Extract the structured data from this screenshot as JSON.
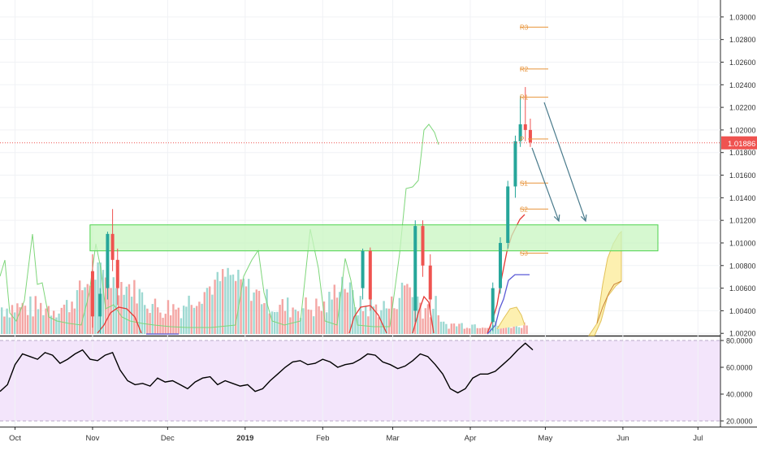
{
  "colors": {
    "up": "#26a69a",
    "down": "#ef5350",
    "vol_up": "#9ed9d2",
    "vol_down": "#f4a6a4",
    "zone_fill": "#c8f5c0",
    "zone_stroke": "#4cd24c",
    "green_line": "#7ed67a",
    "red_line": "#e53935",
    "purple_line": "#5b5bd6",
    "pivot": "#e8943a",
    "arrow": "#4a7b8c",
    "price_tag": "#ef5350",
    "rsi_bg": "#f3e5fb",
    "rsi_line": "#000000",
    "projection": "#fdf0b0"
  },
  "x_axis_labels": [
    "Oct",
    "Nov",
    "Dec",
    "2019",
    "Feb",
    "Mar",
    "Apr",
    "May",
    "Jun",
    "Jul"
  ],
  "price_axis_labels": [
    "1.03000",
    "1.02800",
    "1.02600",
    "1.02400",
    "1.02200",
    "1.02000",
    "1.01800",
    "1.01600",
    "1.01400",
    "1.01200",
    "1.01000",
    "1.00800",
    "1.00600",
    "1.00400",
    "1.00200"
  ],
  "rsi_axis_labels": [
    "80.0000",
    "60.0000",
    "40.0000",
    "20.0000"
  ],
  "current_price": "1.01886",
  "pivot_labels": [
    "R3",
    "R2",
    "R1",
    "P",
    "S1",
    "S2",
    "S3"
  ],
  "chart_data": [
    {
      "type": "candlestick",
      "panel": "price",
      "x_range": [
        "2018-09-25",
        "2019-07-10"
      ],
      "ylim": [
        1.0018,
        1.0315
      ],
      "current_price": 1.01886,
      "resistance_zone": {
        "from": "2018-10-31",
        "to": "2019-06-15",
        "low": 1.0093,
        "high": 1.0116
      },
      "pivots": [
        {
          "label": "R3",
          "value": 1.0291
        },
        {
          "label": "R2",
          "value": 1.0254
        },
        {
          "label": "R1",
          "value": 1.0229
        },
        {
          "label": "P",
          "value": 1.0192
        },
        {
          "label": "S1",
          "value": 1.0153
        },
        {
          "label": "S2",
          "value": 1.013
        },
        {
          "label": "S3",
          "value": 1.0091
        }
      ],
      "candles": [
        {
          "x": "2018-11-01",
          "o": 1.0075,
          "h": 1.009,
          "l": 1.0025,
          "c": 1.0035
        },
        {
          "x": "2018-11-04",
          "o": 1.0035,
          "h": 1.006,
          "l": 1.002,
          "c": 1.0055
        },
        {
          "x": "2018-11-07",
          "o": 1.006,
          "h": 1.011,
          "l": 1.005,
          "c": 1.0108
        },
        {
          "x": "2018-11-09",
          "o": 1.0108,
          "h": 1.013,
          "l": 1.0075,
          "c": 1.0085
        },
        {
          "x": "2018-11-11",
          "o": 1.0085,
          "h": 1.0095,
          "l": 1.0045,
          "c": 1.006
        },
        {
          "x": "2019-02-17",
          "o": 1.006,
          "h": 1.0095,
          "l": 1.005,
          "c": 1.0093
        },
        {
          "x": "2019-02-20",
          "o": 1.0093,
          "h": 1.0096,
          "l": 1.004,
          "c": 1.005
        },
        {
          "x": "2019-03-10",
          "o": 1.004,
          "h": 1.012,
          "l": 1.003,
          "c": 1.0115
        },
        {
          "x": "2019-03-13",
          "o": 1.0115,
          "h": 1.012,
          "l": 1.007,
          "c": 1.008
        },
        {
          "x": "2019-03-16",
          "o": 1.008,
          "h": 1.009,
          "l": 1.004,
          "c": 1.005
        },
        {
          "x": "2019-04-10",
          "o": 1.003,
          "h": 1.0065,
          "l": 1.0022,
          "c": 1.006
        },
        {
          "x": "2019-04-13",
          "o": 1.006,
          "h": 1.0105,
          "l": 1.0055,
          "c": 1.01
        },
        {
          "x": "2019-04-16",
          "o": 1.01,
          "h": 1.0155,
          "l": 1.0095,
          "c": 1.015
        },
        {
          "x": "2019-04-19",
          "o": 1.015,
          "h": 1.0195,
          "l": 1.014,
          "c": 1.019
        },
        {
          "x": "2019-04-21",
          "o": 1.019,
          "h": 1.023,
          "l": 1.0185,
          "c": 1.0205
        },
        {
          "x": "2019-04-23",
          "o": 1.0205,
          "h": 1.0238,
          "l": 1.019,
          "c": 1.02
        },
        {
          "x": "2019-04-25",
          "o": 1.02,
          "h": 1.021,
          "l": 1.0185,
          "c": 1.0189
        }
      ]
    },
    {
      "type": "line",
      "panel": "rsi",
      "ylim": [
        20,
        80
      ],
      "series": [
        {
          "x": [
            "2018-09-25",
            "2018-09-28",
            "2018-10-01",
            "2018-10-04",
            "2018-10-07",
            "2018-10-10",
            "2018-10-13",
            "2018-10-16",
            "2018-10-19",
            "2018-10-22",
            "2018-10-25",
            "2018-10-28",
            "2018-10-31",
            "2018-11-03",
            "2018-11-06",
            "2018-11-09",
            "2018-11-12",
            "2018-11-15",
            "2018-11-18",
            "2018-11-21",
            "2018-11-24",
            "2018-11-27",
            "2018-11-30",
            "2018-12-03",
            "2018-12-06",
            "2018-12-09",
            "2018-12-12",
            "2018-12-15",
            "2018-12-18",
            "2018-12-21",
            "2018-12-24",
            "2018-12-27",
            "2018-12-30",
            "2019-01-02",
            "2019-01-05",
            "2019-01-08",
            "2019-01-11",
            "2019-01-14",
            "2019-01-17",
            "2019-01-20",
            "2019-01-23",
            "2019-01-26",
            "2019-01-29",
            "2019-02-01",
            "2019-02-04",
            "2019-02-07",
            "2019-02-10",
            "2019-02-13",
            "2019-02-16",
            "2019-02-19",
            "2019-02-22",
            "2019-02-25",
            "2019-02-28",
            "2019-03-03",
            "2019-03-06",
            "2019-03-09",
            "2019-03-12",
            "2019-03-15",
            "2019-03-18",
            "2019-03-21",
            "2019-03-24",
            "2019-03-27",
            "2019-03-30",
            "2019-04-02",
            "2019-04-05",
            "2019-04-08",
            "2019-04-11",
            "2019-04-14",
            "2019-04-17",
            "2019-04-20",
            "2019-04-23",
            "2019-04-26"
          ],
          "values": [
            42,
            47,
            62,
            70,
            68,
            66,
            71,
            69,
            63,
            66,
            70,
            73,
            66,
            65,
            69,
            71,
            58,
            50,
            47,
            48,
            46,
            52,
            49,
            50,
            47,
            44,
            49,
            52,
            53,
            47,
            50,
            48,
            46,
            47,
            42,
            44,
            50,
            55,
            60,
            64,
            65,
            62,
            63,
            66,
            64,
            60,
            62,
            63,
            66,
            70,
            69,
            64,
            62,
            59,
            61,
            65,
            70,
            68,
            62,
            55,
            44,
            41,
            44,
            52,
            55,
            55,
            57,
            62,
            67,
            73,
            78,
            73
          ]
        }
      ]
    }
  ]
}
